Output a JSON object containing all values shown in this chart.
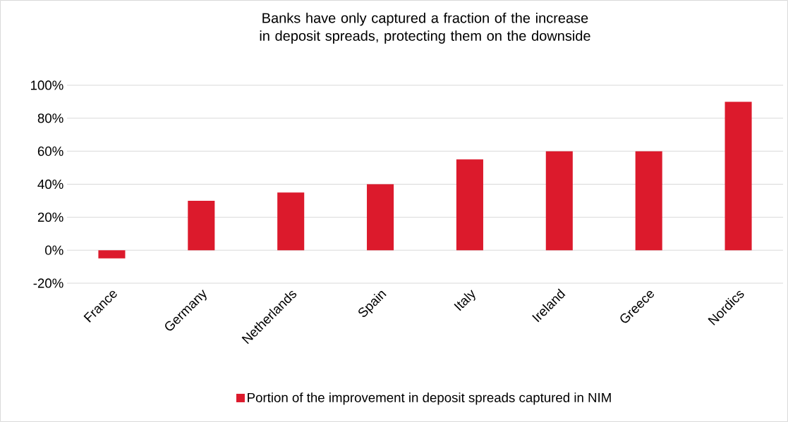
{
  "chart_data": {
    "type": "bar",
    "title": "Banks have only captured a fraction of the increase in deposit spreads, protecting them on the downside",
    "categories": [
      "France",
      "Germany",
      "Netherlands",
      "Spain",
      "Italy",
      "Ireland",
      "Greece",
      "Nordics"
    ],
    "series": [
      {
        "name": "Portion of the improvement in deposit spreads captured in NIM",
        "color": "#dc1a2c",
        "values": [
          -5,
          30,
          35,
          40,
          55,
          60,
          60,
          90
        ]
      }
    ],
    "ylim": [
      -20,
      100
    ],
    "yticks": [
      {
        "value": -20,
        "label": "-20%"
      },
      {
        "value": 0,
        "label": "0%"
      },
      {
        "value": 20,
        "label": "20%"
      },
      {
        "value": 40,
        "label": "40%"
      },
      {
        "value": 60,
        "label": "60%"
      },
      {
        "value": 80,
        "label": "80%"
      },
      {
        "value": 100,
        "label": "100%"
      }
    ],
    "grid": "y",
    "legend": "bottom"
  }
}
